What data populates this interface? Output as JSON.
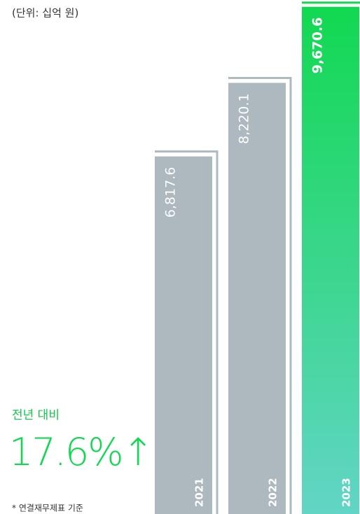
{
  "chart_data": {
    "type": "bar",
    "unit_note": "(단위: 십억 원)",
    "categories": [
      "2021",
      "2022",
      "2023"
    ],
    "values": [
      6817.6,
      8220.1,
      9670.6
    ],
    "value_labels": [
      "6,817.6",
      "8,220.1",
      "9,670.6"
    ],
    "colors": [
      "#adb8bf",
      "#adb8bf",
      "#12d851"
    ],
    "highlight_gradient": [
      "#12d851",
      "#62d5c6"
    ],
    "ylim": [
      0,
      9800
    ],
    "annotation_title": "전년 대비",
    "annotation_value": "17.6%↑",
    "footnote": "* 연결재무제표 기준"
  }
}
